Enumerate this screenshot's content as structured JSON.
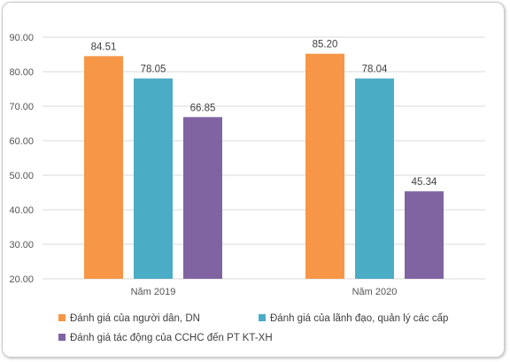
{
  "chart_data": {
    "type": "bar",
    "categories": [
      "Năm 2019",
      "Năm 2020"
    ],
    "series": [
      {
        "name": "Đánh giá của người dân, DN",
        "values": [
          84.51,
          85.2
        ],
        "labels": [
          "84.51",
          "85.20"
        ],
        "color": "#F79646"
      },
      {
        "name": "Đánh giá của lãnh đạo, quản lý các cấp",
        "values": [
          78.05,
          78.04
        ],
        "labels": [
          "78.05",
          "78.04"
        ],
        "color": "#4BACC6"
      },
      {
        "name": "Đánh giá tác động của CCHC đến PT KT-XH",
        "values": [
          66.85,
          45.34
        ],
        "labels": [
          "66.85",
          "45.34"
        ],
        "color": "#8064A2"
      }
    ],
    "yticks": [
      "20.00",
      "30.00",
      "40.00",
      "50.00",
      "60.00",
      "70.00",
      "80.00",
      "90.00"
    ],
    "ylim": [
      20,
      90
    ],
    "grid": true,
    "legend": "bottom"
  }
}
